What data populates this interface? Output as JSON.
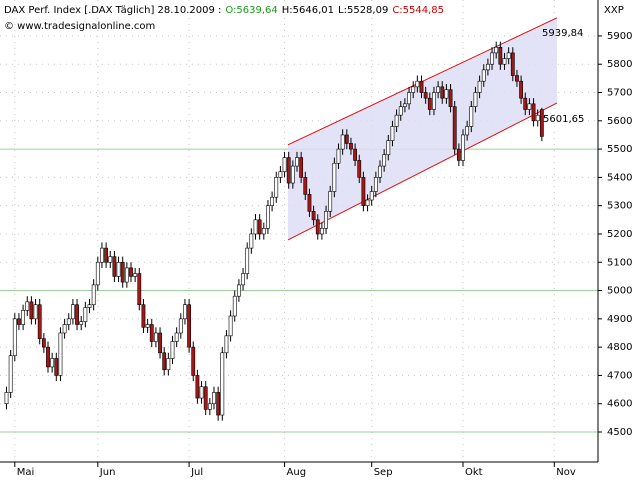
{
  "chart_data": {
    "type": "candlestick",
    "title": "DAX Perf. Index [.DAX Täglich] 28.10.2009 :",
    "ohlc_labels": [
      {
        "text": "O:5639,64",
        "color": "#1a9a1a"
      },
      {
        "text": "H:5646,01",
        "color": "#000000"
      },
      {
        "text": "L:5528,09",
        "color": "#000000"
      },
      {
        "text": "C:5544,85",
        "color": "#cc0000"
      }
    ],
    "source": "© www.tradesignalonline.com",
    "axis_label": "XXP",
    "categories": [
      null,
      null,
      "Mai",
      null,
      null,
      null,
      null,
      null,
      null,
      null,
      null,
      null,
      null,
      null,
      null,
      null,
      null,
      null,
      null,
      null,
      null,
      null,
      "Jun",
      null,
      null,
      null,
      null,
      null,
      null,
      null,
      null,
      null,
      null,
      null,
      null,
      null,
      null,
      null,
      null,
      null,
      null,
      null,
      null,
      null,
      "Jul",
      null,
      null,
      null,
      null,
      null,
      null,
      null,
      null,
      null,
      null,
      null,
      null,
      null,
      null,
      null,
      null,
      null,
      null,
      null,
      null,
      null,
      null,
      "Aug",
      null,
      null,
      null,
      null,
      null,
      null,
      null,
      null,
      null,
      null,
      null,
      null,
      null,
      null,
      null,
      null,
      null,
      null,
      null,
      null,
      "Sep",
      null,
      null,
      null,
      null,
      null,
      null,
      null,
      null,
      null,
      null,
      null,
      null,
      null,
      null,
      null,
      null,
      null,
      null,
      null,
      null,
      null,
      "Okt",
      null,
      null,
      null,
      null,
      null,
      null,
      null,
      null,
      null,
      null,
      null,
      null,
      null,
      null,
      null,
      null,
      null,
      null,
      null,
      null,
      null,
      "Nov"
    ],
    "open": [
      4600,
      4640,
      4770,
      4900,
      4880,
      4930,
      4960,
      4900,
      4950,
      4830,
      4800,
      4730,
      4760,
      4700,
      4850,
      4880,
      4900,
      4950,
      4880,
      4890,
      4940,
      4950,
      5020,
      5100,
      5150,
      5100,
      5120,
      5050,
      5100,
      5030,
      5080,
      5050,
      5060,
      4950,
      4870,
      4880,
      4820,
      4850,
      4780,
      4720,
      4760,
      4820,
      4850,
      4900,
      4950,
      4800,
      4700,
      4620,
      4660,
      4580,
      4600,
      4640,
      4560,
      4780,
      4840,
      4910,
      4980,
      5020,
      5060,
      5150,
      5200,
      5250,
      5200,
      5220,
      5300,
      5330,
      5400,
      5420,
      5470,
      5380,
      5440,
      5470,
      5400,
      5340,
      5280,
      5250,
      5200,
      5220,
      5280,
      5350,
      5450,
      5500,
      5550,
      5520,
      5500,
      5460,
      5400,
      5300,
      5320,
      5350,
      5400,
      5440,
      5480,
      5530,
      5580,
      5620,
      5650,
      5660,
      5700,
      5720,
      5740,
      5700,
      5680,
      5640,
      5700,
      5720,
      5680,
      5710,
      5650,
      5500,
      5460,
      5550,
      5580,
      5650,
      5700,
      5740,
      5780,
      5800,
      5840,
      5860,
      5800,
      5820,
      5840,
      5760,
      5740,
      5680,
      5640,
      5660,
      5600,
      5639.64,
      null,
      null,
      null
    ],
    "high": [
      4660,
      4790,
      4920,
      4920,
      4950,
      4980,
      4980,
      4970,
      4970,
      4850,
      4820,
      4780,
      4780,
      4870,
      4900,
      4920,
      4970,
      4970,
      4910,
      4960,
      4970,
      5040,
      5120,
      5170,
      5170,
      5140,
      5140,
      5120,
      5120,
      5100,
      5100,
      5080,
      5080,
      4970,
      4900,
      4900,
      4870,
      4870,
      4800,
      4780,
      4840,
      4870,
      4920,
      4970,
      4970,
      4820,
      4720,
      4680,
      4680,
      4620,
      4660,
      4660,
      4800,
      4860,
      4930,
      5000,
      5040,
      5080,
      5170,
      5220,
      5270,
      5270,
      5240,
      5320,
      5350,
      5420,
      5440,
      5490,
      5490,
      5460,
      5490,
      5490,
      5420,
      5360,
      5300,
      5270,
      5240,
      5300,
      5370,
      5470,
      5520,
      5570,
      5570,
      5540,
      5520,
      5480,
      5420,
      5340,
      5370,
      5420,
      5460,
      5500,
      5550,
      5600,
      5640,
      5670,
      5680,
      5720,
      5740,
      5760,
      5760,
      5720,
      5700,
      5720,
      5740,
      5740,
      5730,
      5730,
      5670,
      5520,
      5570,
      5600,
      5670,
      5720,
      5760,
      5800,
      5820,
      5860,
      5880,
      5880,
      5840,
      5860,
      5860,
      5780,
      5760,
      5700,
      5680,
      5680,
      5640,
      5646.01,
      null,
      null,
      null
    ],
    "low": [
      4580,
      4620,
      4750,
      4860,
      4860,
      4910,
      4880,
      4880,
      4810,
      4780,
      4710,
      4710,
      4680,
      4680,
      4830,
      4860,
      4880,
      4860,
      4860,
      4870,
      4920,
      4930,
      5000,
      5080,
      5080,
      5080,
      5030,
      5030,
      5010,
      5010,
      5030,
      5030,
      4930,
      4850,
      4850,
      4800,
      4800,
      4760,
      4700,
      4700,
      4740,
      4800,
      4830,
      4880,
      4780,
      4680,
      4600,
      4600,
      4560,
      4560,
      4580,
      4540,
      4540,
      4760,
      4820,
      4890,
      4960,
      5000,
      5040,
      5130,
      5180,
      5180,
      5180,
      5200,
      5280,
      5310,
      5380,
      5400,
      5360,
      5360,
      5420,
      5380,
      5320,
      5260,
      5230,
      5180,
      5180,
      5200,
      5260,
      5330,
      5430,
      5480,
      5500,
      5480,
      5440,
      5380,
      5280,
      5280,
      5300,
      5330,
      5380,
      5420,
      5460,
      5510,
      5560,
      5600,
      5630,
      5640,
      5680,
      5700,
      5680,
      5660,
      5620,
      5620,
      5680,
      5660,
      5660,
      5630,
      5480,
      5440,
      5440,
      5530,
      5560,
      5630,
      5680,
      5720,
      5760,
      5780,
      5820,
      5780,
      5780,
      5800,
      5740,
      5720,
      5660,
      5620,
      5620,
      5580,
      5580,
      5528.09,
      null,
      null,
      null
    ],
    "close": [
      4640,
      4770,
      4900,
      4880,
      4930,
      4960,
      4900,
      4950,
      4830,
      4800,
      4730,
      4760,
      4700,
      4850,
      4880,
      4900,
      4950,
      4880,
      4890,
      4940,
      4950,
      5020,
      5100,
      5150,
      5100,
      5120,
      5050,
      5100,
      5030,
      5080,
      5050,
      5060,
      4950,
      4870,
      4880,
      4820,
      4850,
      4780,
      4720,
      4760,
      4820,
      4850,
      4900,
      4950,
      4800,
      4700,
      4620,
      4660,
      4580,
      4600,
      4640,
      4560,
      4780,
      4840,
      4910,
      4980,
      5020,
      5060,
      5150,
      5200,
      5250,
      5200,
      5220,
      5300,
      5330,
      5400,
      5420,
      5470,
      5380,
      5440,
      5470,
      5400,
      5340,
      5280,
      5250,
      5200,
      5220,
      5280,
      5350,
      5450,
      5500,
      5550,
      5520,
      5500,
      5460,
      5400,
      5300,
      5320,
      5350,
      5400,
      5440,
      5480,
      5530,
      5580,
      5620,
      5650,
      5660,
      5700,
      5720,
      5740,
      5700,
      5680,
      5640,
      5700,
      5720,
      5680,
      5710,
      5650,
      5500,
      5460,
      5550,
      5580,
      5650,
      5700,
      5740,
      5780,
      5800,
      5840,
      5860,
      5800,
      5820,
      5840,
      5760,
      5740,
      5680,
      5640,
      5660,
      5600,
      5620,
      5544.85,
      null,
      null,
      null
    ],
    "up_color": "#ffffff",
    "down_color": "#a01818",
    "channel": {
      "upper": [
        5515,
        5964
      ],
      "lower": [
        5179,
        5663
      ],
      "color": "#e01010",
      "fill": "#dcdcf6",
      "value_labels": [
        "5939,84",
        "5601,65"
      ]
    },
    "ylim": [
      4394,
      6027
    ],
    "yticks": [
      4500,
      4600,
      4700,
      4800,
      4900,
      5000,
      5100,
      5200,
      5300,
      5400,
      5500,
      5600,
      5700,
      5800,
      5900
    ],
    "major_grid_every": 5,
    "grid": true
  }
}
